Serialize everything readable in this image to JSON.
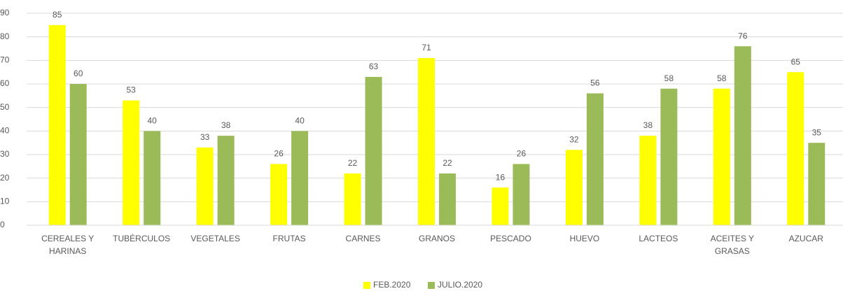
{
  "chart_data": {
    "type": "bar",
    "categories": [
      "CEREALES Y HARINAS",
      "TUBÉRCULOS",
      "VEGETALES",
      "FRUTAS",
      "CARNES",
      "GRANOS",
      "PESCADO",
      "HUEVO",
      "LACTEOS",
      "ACEITES Y GRASAS",
      "AZUCAR"
    ],
    "series": [
      {
        "name": "FEB.2020",
        "color": "#ffff00",
        "values": [
          85,
          53,
          33,
          26,
          22,
          71,
          16,
          32,
          38,
          58,
          65
        ]
      },
      {
        "name": "JULIO.2020",
        "color": "#9bbb59",
        "values": [
          60,
          40,
          38,
          40,
          63,
          22,
          26,
          56,
          58,
          76,
          35
        ]
      }
    ],
    "ylim": [
      0,
      90
    ],
    "yticks": [
      0,
      10,
      20,
      30,
      40,
      50,
      60,
      70,
      80,
      90
    ],
    "grid": true,
    "legend": "bottom"
  }
}
